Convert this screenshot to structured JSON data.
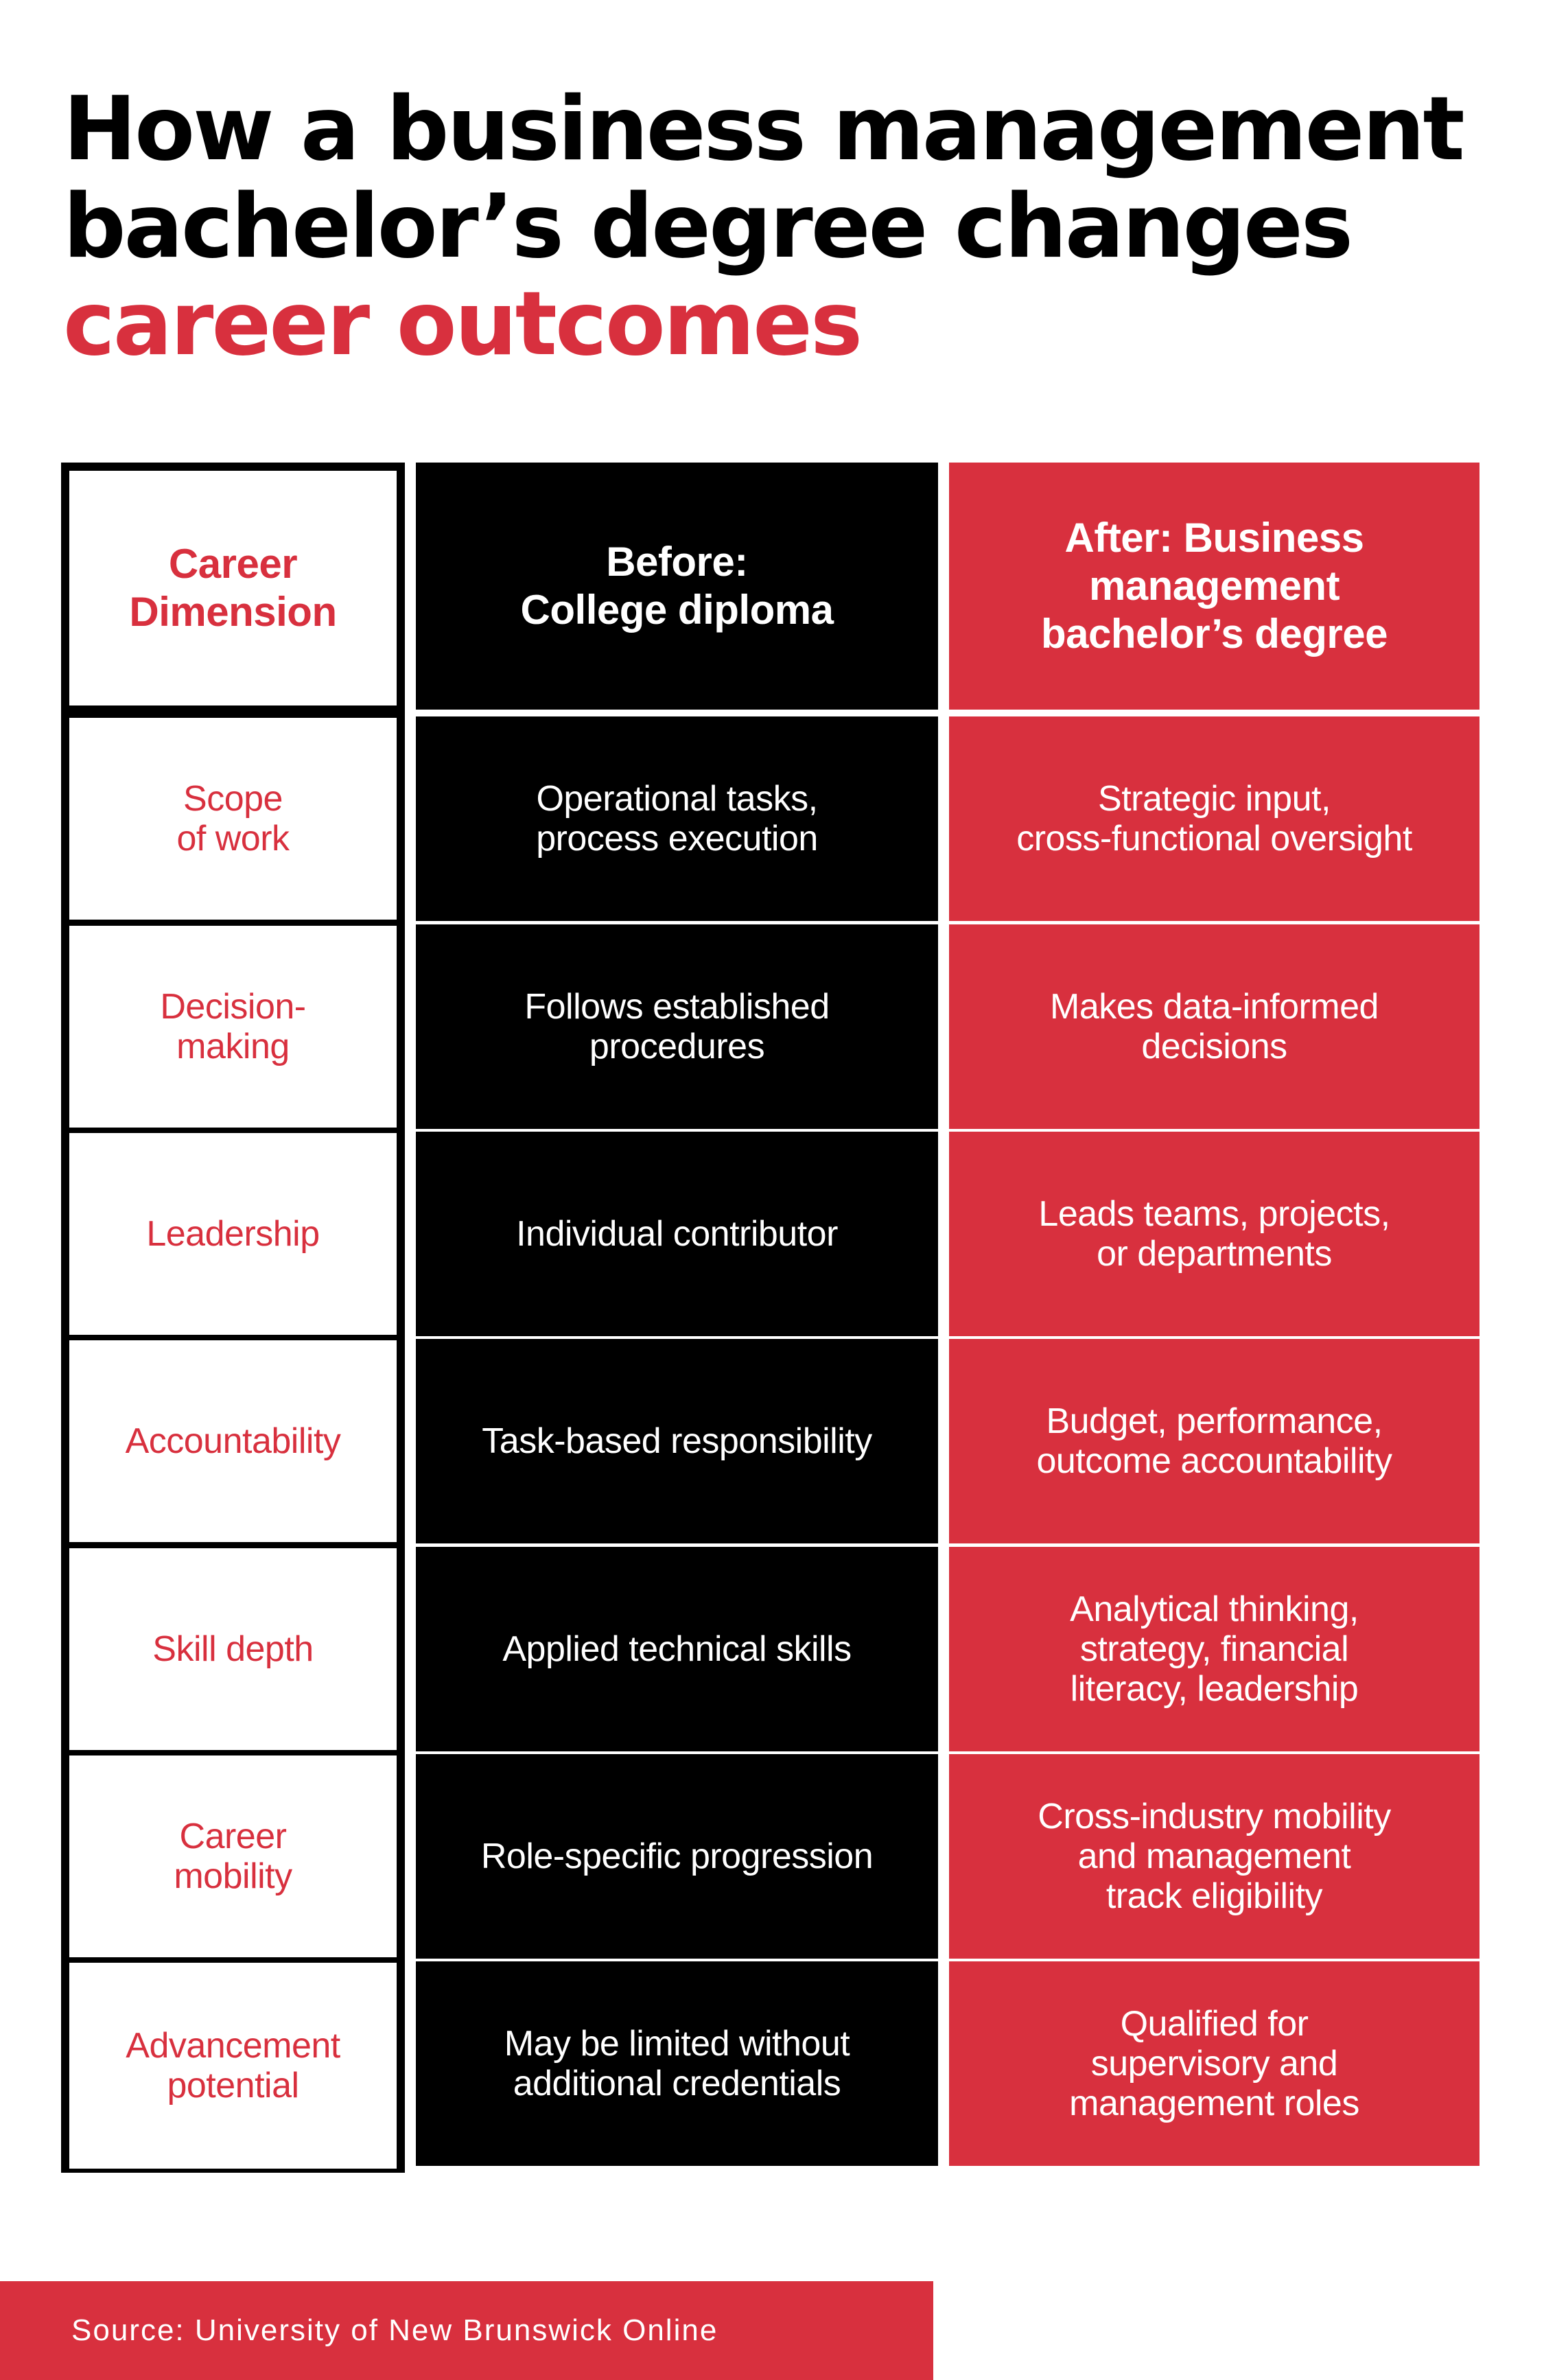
{
  "title": {
    "line1": "How a business management",
    "line2": "bachelor’s degree changes",
    "line3": "career outcomes"
  },
  "colors": {
    "accent": "#d8303e",
    "dark": "#000000",
    "background": "#ffffff"
  },
  "table": {
    "headers": [
      "Career\nDimension",
      "Before:\nCollege diploma",
      "After: Business\nmanagement\nbachelor’s degree"
    ],
    "rows": [
      {
        "dimension": "Scope\nof work",
        "before": "Operational tasks,\nprocess execution",
        "after": "Strategic input,\ncross-functional oversight"
      },
      {
        "dimension": "Decision-\nmaking",
        "before": "Follows established\nprocedures",
        "after": "Makes data-informed\ndecisions"
      },
      {
        "dimension": "Leadership",
        "before": "Individual contributor",
        "after": "Leads teams, projects,\nor departments"
      },
      {
        "dimension": "Accountability",
        "before": "Task-based responsibility",
        "after": "Budget, performance,\noutcome accountability"
      },
      {
        "dimension": "Skill depth",
        "before": "Applied technical skills",
        "after": "Analytical thinking,\nstrategy, financial\nliteracy, leadership"
      },
      {
        "dimension": "Career\nmobility",
        "before": "Role-specific progression",
        "after": "Cross-industry mobility\nand management\ntrack eligibility"
      },
      {
        "dimension": "Advancement\npotential",
        "before": "May be limited without\nadditional credentials",
        "after": "Qualified for\nsupervisory and\nmanagement roles"
      }
    ]
  },
  "footer": {
    "source": "Source: University of New Brunswick Online"
  }
}
